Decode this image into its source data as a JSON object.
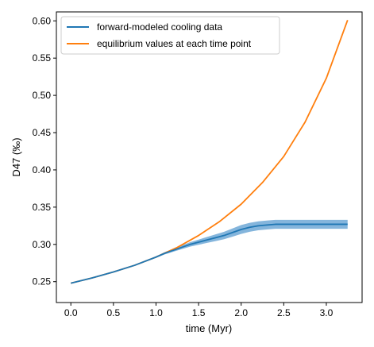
{
  "chart_data": {
    "type": "line",
    "title": "",
    "xlabel": "time (Myr)",
    "ylabel": "D47 (‰)",
    "xlim": [
      -0.17,
      3.42
    ],
    "ylim": [
      0.222,
      0.612
    ],
    "xticks": [
      0.0,
      0.5,
      1.0,
      1.5,
      2.0,
      2.5,
      3.0
    ],
    "xtick_labels": [
      "0.0",
      "0.5",
      "1.0",
      "1.5",
      "2.0",
      "2.5",
      "3.0"
    ],
    "yticks": [
      0.25,
      0.3,
      0.35,
      0.4,
      0.45,
      0.5,
      0.55,
      0.6
    ],
    "ytick_labels": [
      "0.25",
      "0.30",
      "0.35",
      "0.40",
      "0.45",
      "0.50",
      "0.55",
      "0.60"
    ],
    "grid": false,
    "legend_position": "upper-left",
    "series": [
      {
        "name": "forward-modeled cooling data",
        "color": "#1f77b4",
        "band_color": "#6fa8d6",
        "x": [
          0.0,
          0.25,
          0.5,
          0.75,
          1.0,
          1.1,
          1.2,
          1.3,
          1.4,
          1.5,
          1.6,
          1.7,
          1.8,
          1.9,
          2.0,
          2.1,
          2.2,
          2.3,
          2.4,
          2.5,
          2.75,
          3.0,
          3.25
        ],
        "y": [
          0.248,
          0.255,
          0.263,
          0.272,
          0.283,
          0.288,
          0.292,
          0.296,
          0.3,
          0.303,
          0.306,
          0.309,
          0.312,
          0.316,
          0.32,
          0.323,
          0.325,
          0.326,
          0.327,
          0.327,
          0.327,
          0.327,
          0.327
        ],
        "band_halfwidth": [
          0.0005,
          0.0005,
          0.0005,
          0.0007,
          0.001,
          0.0015,
          0.002,
          0.0025,
          0.003,
          0.0035,
          0.004,
          0.0045,
          0.005,
          0.0055,
          0.006,
          0.006,
          0.006,
          0.006,
          0.006,
          0.006,
          0.006,
          0.006,
          0.006
        ]
      },
      {
        "name": "equilibrium values at each time point",
        "color": "#ff7f0e",
        "x": [
          0.0,
          0.25,
          0.5,
          0.75,
          1.0,
          1.25,
          1.5,
          1.75,
          2.0,
          2.25,
          2.5,
          2.75,
          3.0,
          3.25
        ],
        "y": [
          0.248,
          0.255,
          0.263,
          0.272,
          0.283,
          0.296,
          0.312,
          0.331,
          0.354,
          0.383,
          0.418,
          0.464,
          0.523,
          0.601
        ]
      }
    ]
  }
}
